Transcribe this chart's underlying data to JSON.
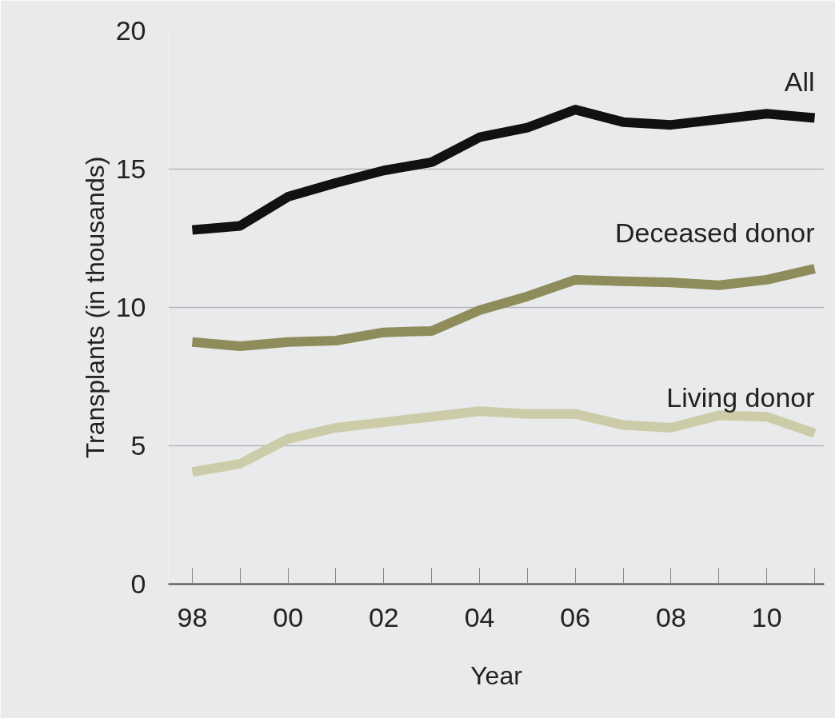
{
  "chart_data": {
    "type": "line",
    "xlabel": "Year",
    "ylabel": "Transplants (in thousands)",
    "x": [
      1998,
      1999,
      2000,
      2001,
      2002,
      2003,
      2004,
      2005,
      2006,
      2007,
      2008,
      2009,
      2010,
      2011
    ],
    "series": [
      {
        "name": "All",
        "color": "#111111",
        "values": [
          12.8,
          12.95,
          14.0,
          14.5,
          14.95,
          15.25,
          16.15,
          16.5,
          17.15,
          16.7,
          16.6,
          16.8,
          17.0,
          16.85
        ]
      },
      {
        "name": "Deceased donor",
        "color": "#8e8c5a",
        "values": [
          8.75,
          8.6,
          8.75,
          8.8,
          9.1,
          9.15,
          9.9,
          10.4,
          11.0,
          10.95,
          10.9,
          10.8,
          11.0,
          11.4
        ]
      },
      {
        "name": "Living donor",
        "color": "#cdcca9",
        "values": [
          4.05,
          4.35,
          5.25,
          5.65,
          5.85,
          6.05,
          6.25,
          6.15,
          6.15,
          5.75,
          5.65,
          6.1,
          6.05,
          5.45
        ]
      }
    ],
    "xlim": [
      1997.5,
      2011.2
    ],
    "xticks": [
      {
        "value": 1998,
        "label": "98"
      },
      {
        "value": 2000,
        "label": "00"
      },
      {
        "value": 2002,
        "label": "02"
      },
      {
        "value": 2004,
        "label": "04"
      },
      {
        "value": 2006,
        "label": "06"
      },
      {
        "value": 2008,
        "label": "08"
      },
      {
        "value": 2010,
        "label": "10"
      }
    ],
    "ylim": [
      0,
      20
    ],
    "yticks": [
      0,
      5,
      10,
      15,
      20
    ],
    "grid": "y",
    "legend": false,
    "marker": "none",
    "line_style": "solid"
  }
}
